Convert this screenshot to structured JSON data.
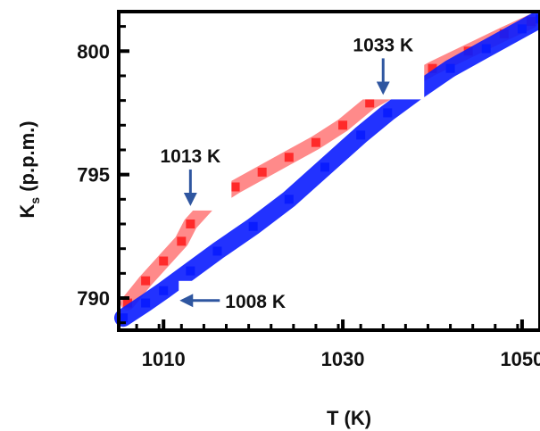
{
  "chart_data": {
    "type": "scatter",
    "title": "",
    "xlabel": "T (K)",
    "ylabel": "K",
    "ylabel_sub": "s",
    "ylabel_suffix": " (p.p.m.)",
    "xlim": [
      1005,
      1052
    ],
    "ylim": [
      788.7,
      801.6
    ],
    "xticks": [
      1010,
      1030,
      1050
    ],
    "yticks": [
      790,
      795,
      800
    ],
    "grid": false,
    "legend": "none",
    "series": [
      {
        "color": "#ff2a2a",
        "x": [
          1006,
          1008,
          1010,
          1012,
          1013,
          1015,
          1018,
          1021,
          1024,
          1027,
          1030,
          1033,
          1036,
          1040,
          1044,
          1048,
          1051
        ],
        "y": [
          789.8,
          790.7,
          791.5,
          792.3,
          793.0,
          793.8,
          794.5,
          795.1,
          795.7,
          796.3,
          797.0,
          797.9,
          798.5,
          799.3,
          800.0,
          800.7,
          801.2
        ]
      },
      {
        "color": "#0a1cff",
        "x": [
          1005.5,
          1008,
          1010,
          1013,
          1016,
          1020,
          1024,
          1028,
          1032,
          1035,
          1038,
          1042,
          1046,
          1050,
          1052
        ],
        "y": [
          789.2,
          789.8,
          790.3,
          791.1,
          791.9,
          792.9,
          794.0,
          795.3,
          796.6,
          797.5,
          798.3,
          799.3,
          800.1,
          800.9,
          801.3
        ]
      }
    ],
    "annotations": [
      {
        "text": "1033  K",
        "x": 1034.5,
        "y": 797.9,
        "arrow": "down"
      },
      {
        "text": "1013 K",
        "x": 1013,
        "y": 793.4,
        "arrow": "down"
      },
      {
        "text": "1008 K",
        "x": 1011.5,
        "y": 789.9,
        "arrow": "left"
      }
    ]
  }
}
